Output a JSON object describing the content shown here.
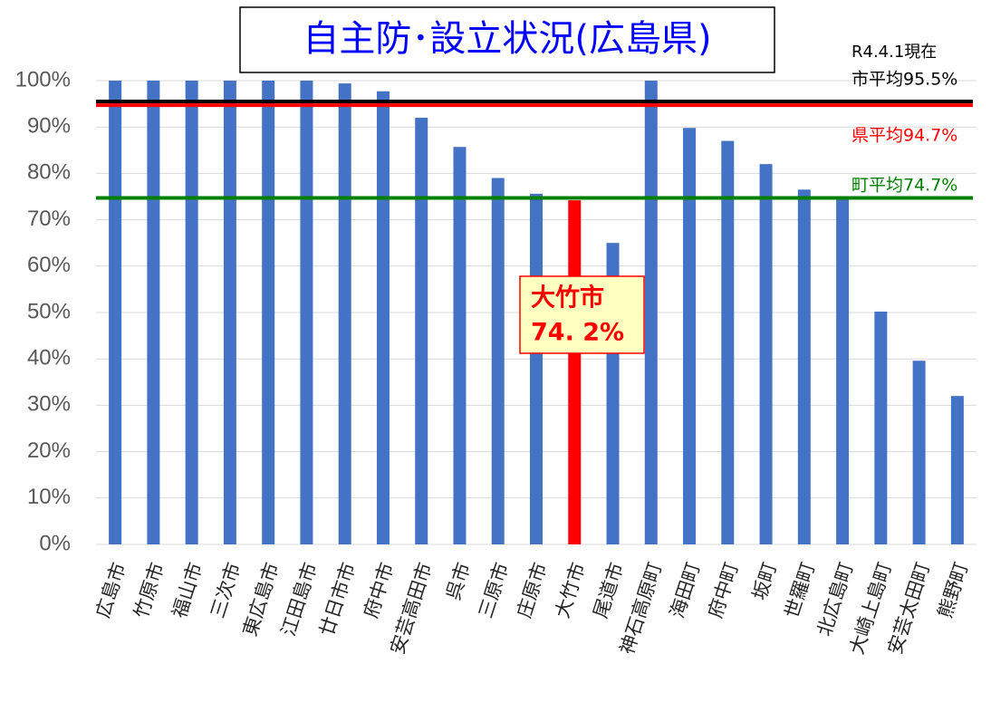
{
  "chart_data": {
    "type": "bar",
    "title": "自主防･設立状況(広島県)",
    "date_note": "R4.4.1現在",
    "categories": [
      "広島市",
      "竹原市",
      "福山市",
      "三次市",
      "東広島市",
      "江田島市",
      "廿日市市",
      "府中市",
      "安芸高田市",
      "呉市",
      "三原市",
      "庄原市",
      "大竹市",
      "尾道市",
      "神石高原町",
      "海田町",
      "府中町",
      "坂町",
      "世羅町",
      "北広島町",
      "大崎上島町",
      "安芸太田町",
      "熊野町"
    ],
    "values": [
      100,
      100,
      100,
      100,
      100,
      100,
      99.4,
      97.7,
      92,
      85.7,
      79,
      75.6,
      74.2,
      65,
      100,
      89.8,
      87,
      82,
      76.5,
      74.8,
      50.2,
      39.6,
      32
    ],
    "colors": [
      "#4472c4",
      "#4472c4",
      "#4472c4",
      "#4472c4",
      "#4472c4",
      "#4472c4",
      "#4472c4",
      "#4472c4",
      "#4472c4",
      "#4472c4",
      "#4472c4",
      "#4472c4",
      "#ff0000",
      "#4472c4",
      "#4472c4",
      "#4472c4",
      "#4472c4",
      "#4472c4",
      "#4472c4",
      "#4472c4",
      "#4472c4",
      "#4472c4",
      "#4472c4"
    ],
    "callout": {
      "lines": [
        "大竹市",
        "74. 2%"
      ],
      "value": 74.2
    },
    "reference_lines": [
      {
        "label": "市平均95.5%",
        "value": 95.5,
        "color": "#000000"
      },
      {
        "label": "県平均94.7%",
        "value": 94.7,
        "color": "#ff0000"
      },
      {
        "label": "町平均74.7%",
        "value": 74.7,
        "color": "#008000"
      }
    ],
    "ylim": [
      0,
      100
    ],
    "yticks": [
      {
        "value": 0,
        "label": "0%"
      },
      {
        "value": 10,
        "label": "10%"
      },
      {
        "value": 20,
        "label": "20%"
      },
      {
        "value": 30,
        "label": "30%"
      },
      {
        "value": 40,
        "label": "40%"
      },
      {
        "value": 50,
        "label": "50%"
      },
      {
        "value": 60,
        "label": "60%"
      },
      {
        "value": 70,
        "label": "70%"
      },
      {
        "value": 80,
        "label": "80%"
      },
      {
        "value": 90,
        "label": "90%"
      },
      {
        "value": 100,
        "label": "100%"
      }
    ],
    "grid": true
  }
}
